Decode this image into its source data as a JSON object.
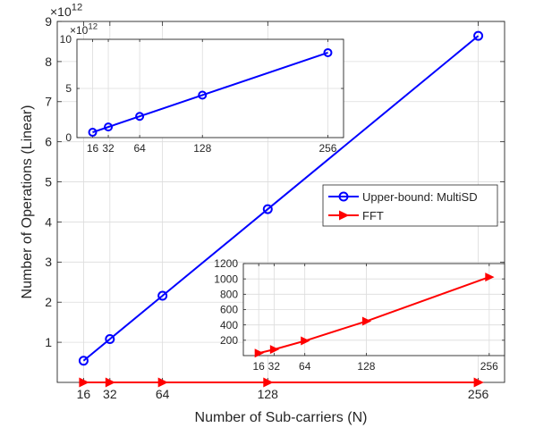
{
  "colors": {
    "multisd": "#0000ff",
    "fft": "#ff0000",
    "axis": "#262626",
    "grid": "#dcdcdc"
  },
  "chart_data": [
    {
      "id": "main",
      "type": "line",
      "xlabel": "Number of Sub-carriers (N)",
      "ylabel": "Number of Operations (Linear)",
      "xlim": [
        0,
        272
      ],
      "ylim": [
        0,
        9
      ],
      "exponent_label": "×10",
      "exponent_power": "12",
      "xticks": [
        16,
        32,
        64,
        128,
        256
      ],
      "xtick_labels": [
        "16",
        "32",
        "64",
        "128",
        "256"
      ],
      "yticks": [
        1,
        2,
        3,
        4,
        5,
        6,
        7,
        8,
        9
      ],
      "ytick_labels": [
        "1",
        "2",
        "3",
        "4",
        "5",
        "6",
        "7",
        "8",
        "9"
      ],
      "grid": true,
      "legend_position": "right-middle",
      "series": [
        {
          "name": "Upper-bound: MultiSD",
          "marker": "circle",
          "color_key": "multisd",
          "x": [
            16,
            32,
            64,
            128,
            256
          ],
          "y": [
            0.54,
            1.08,
            2.16,
            4.32,
            8.64
          ]
        },
        {
          "name": "FFT",
          "marker": "triangle-right",
          "color_key": "fft",
          "x": [
            16,
            32,
            64,
            128,
            256
          ],
          "y": [
            0.0,
            0.0,
            0.0,
            0.0,
            0.0
          ]
        }
      ]
    },
    {
      "id": "inset_top",
      "type": "line",
      "xlim": [
        0,
        272
      ],
      "ylim": [
        0,
        10
      ],
      "exponent_label": "×10",
      "exponent_power": "12",
      "xticks": [
        16,
        32,
        64,
        128,
        256
      ],
      "xtick_labels": [
        "16",
        "32",
        "64",
        "128",
        "256"
      ],
      "yticks": [
        0,
        5,
        10
      ],
      "ytick_labels": [
        "0",
        "5",
        "10"
      ],
      "grid": true,
      "series": [
        {
          "marker": "circle",
          "color_key": "multisd",
          "x": [
            16,
            32,
            64,
            128,
            256
          ],
          "y": [
            0.54,
            1.08,
            2.16,
            4.32,
            8.64
          ]
        }
      ]
    },
    {
      "id": "inset_bottom",
      "type": "line",
      "xlim": [
        0,
        272
      ],
      "ylim": [
        0,
        1200
      ],
      "xticks": [
        16,
        32,
        64,
        128,
        256
      ],
      "xtick_labels": [
        "16",
        "32",
        "64",
        "128",
        "256"
      ],
      "yticks": [
        200,
        400,
        600,
        800,
        1000,
        1200
      ],
      "ytick_labels": [
        "200",
        "400",
        "600",
        "800",
        "1000",
        "1200"
      ],
      "grid": true,
      "series": [
        {
          "marker": "triangle-right",
          "color_key": "fft",
          "x": [
            16,
            32,
            64,
            128,
            256
          ],
          "y": [
            32,
            80,
            192,
            448,
            1024
          ]
        }
      ]
    }
  ]
}
